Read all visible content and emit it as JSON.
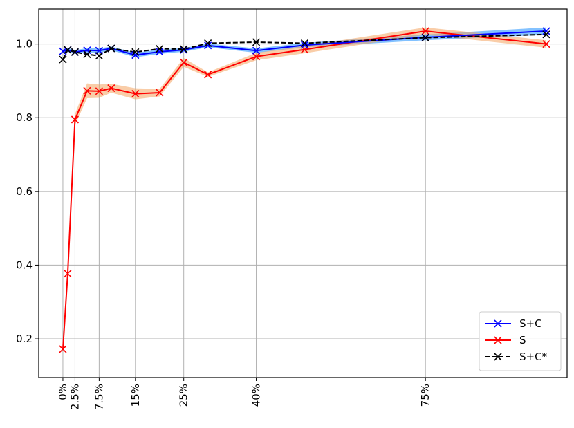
{
  "chart_data": {
    "type": "line",
    "title": "",
    "xlabel": "",
    "ylabel": "",
    "x": [
      0,
      1,
      2.5,
      5,
      7.5,
      10,
      15,
      20,
      25,
      30,
      40,
      50,
      75,
      100
    ],
    "x_ticks": [
      {
        "value": 0,
        "label": "0%"
      },
      {
        "value": 2.5,
        "label": "2.5%"
      },
      {
        "value": 7.5,
        "label": "7.5%"
      },
      {
        "value": 15,
        "label": "15%"
      },
      {
        "value": 25,
        "label": "25%"
      },
      {
        "value": 40,
        "label": "40%"
      },
      {
        "value": 75,
        "label": "75%"
      }
    ],
    "y_ticks": [
      {
        "value": 0.2,
        "label": "0.2"
      },
      {
        "value": 0.4,
        "label": "0.4"
      },
      {
        "value": 0.6,
        "label": "0.6"
      },
      {
        "value": 0.8,
        "label": "0.8"
      },
      {
        "value": 1.0,
        "label": "1.0"
      }
    ],
    "xlim": [
      -5,
      104.3
    ],
    "ylim": [
      0.095,
      1.095
    ],
    "grid": true,
    "legend_position": "lower-right",
    "series": [
      {
        "name": "S+C",
        "color": "#0000ff",
        "band_color": "#1e90ff",
        "line_style": "solid",
        "values": [
          0.98,
          0.984,
          0.978,
          0.983,
          0.982,
          0.988,
          0.97,
          0.979,
          0.984,
          0.996,
          0.982,
          0.997,
          1.018,
          1.035
        ],
        "spread": [
          0.005,
          0.005,
          0.005,
          0.006,
          0.006,
          0.005,
          0.006,
          0.006,
          0.005,
          0.005,
          0.006,
          0.006,
          0.008,
          0.01
        ]
      },
      {
        "name": "S",
        "color": "#ff0000",
        "band_color": "#f4a460",
        "line_style": "solid",
        "values": [
          0.172,
          0.377,
          0.795,
          0.873,
          0.872,
          0.88,
          0.865,
          0.868,
          0.95,
          0.917,
          0.966,
          0.985,
          1.035,
          1.0
        ],
        "spread": [
          0.006,
          0.008,
          0.015,
          0.02,
          0.018,
          0.012,
          0.015,
          0.01,
          0.012,
          0.006,
          0.01,
          0.01,
          0.01,
          0.01
        ]
      },
      {
        "name": "S+C*",
        "color": "#000000",
        "band_color": null,
        "line_style": "dashed",
        "values": [
          0.958,
          0.984,
          0.978,
          0.972,
          0.968,
          0.988,
          0.978,
          0.987,
          0.986,
          1.002,
          1.005,
          1.002,
          1.017,
          1.026
        ],
        "spread": null
      }
    ]
  }
}
